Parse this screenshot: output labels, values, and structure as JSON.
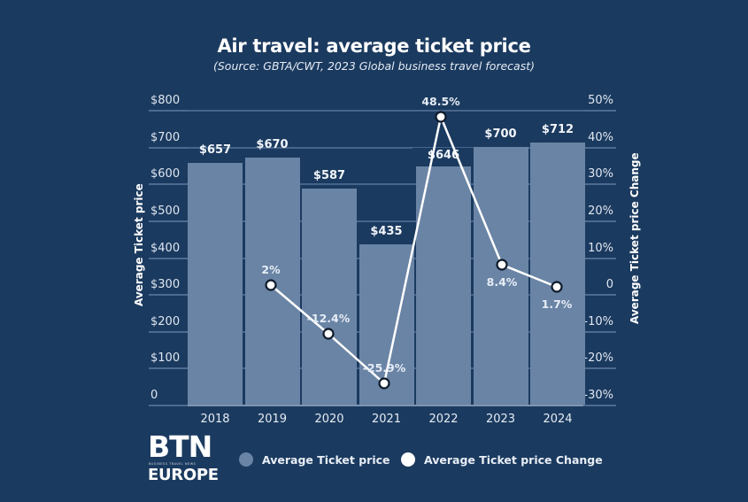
{
  "header": {
    "title": "Air travel: average ticket price",
    "subtitle": "(Source: GBTA/CWT, 2023 Global business travel forecast)"
  },
  "axes": {
    "left_title": "Average Ticket price",
    "right_title": "Average Ticket price Change",
    "left_ticks": [
      "$800",
      "$700",
      "$600",
      "$500",
      "$400",
      "$300",
      "$200",
      "$100",
      "0"
    ],
    "right_ticks": [
      "50%",
      "40%",
      "30%",
      "20%",
      "10%",
      "0",
      "-10%",
      "-20%",
      "-30%"
    ]
  },
  "legend": {
    "bar_label": "Average Ticket price",
    "line_label": "Average Ticket price Change"
  },
  "logo": {
    "main": "BTN",
    "tagline": "BUSINESS TRAVEL NEWS",
    "region": "EUROPE"
  },
  "colors": {
    "background": "#1b3a5f",
    "bar": "#6a84a5",
    "line": "#ffffff",
    "grid": "#4d6a8f"
  },
  "chart_data": {
    "type": "bar",
    "title": "Air travel: average ticket price",
    "subtitle": "(Source: GBTA/CWT, 2023 Global business travel forecast)",
    "categories": [
      "2018",
      "2019",
      "2020",
      "2021",
      "2022",
      "2023",
      "2024"
    ],
    "series": [
      {
        "name": "Average Ticket price",
        "type": "bar",
        "axis": "left",
        "values": [
          657,
          670,
          587,
          435,
          646,
          700,
          712
        ],
        "labels": [
          "$657",
          "$670",
          "$587",
          "$435",
          "$646",
          "$700",
          "$712"
        ]
      },
      {
        "name": "Average Ticket price Change",
        "type": "line",
        "axis": "right",
        "values": [
          null,
          2,
          -12.4,
          -25.9,
          48.5,
          8.4,
          1.7
        ],
        "labels": [
          "",
          "2%",
          "-12.4%",
          "-25.9%",
          "48.5%",
          "8.4%",
          "1.7%"
        ]
      }
    ],
    "xlabel": "",
    "ylabel": "Average Ticket price",
    "y2label": "Average Ticket price Change",
    "ylim": [
      0,
      800
    ],
    "y2lim": [
      -30,
      50
    ],
    "grid": true,
    "legend_position": "bottom"
  }
}
